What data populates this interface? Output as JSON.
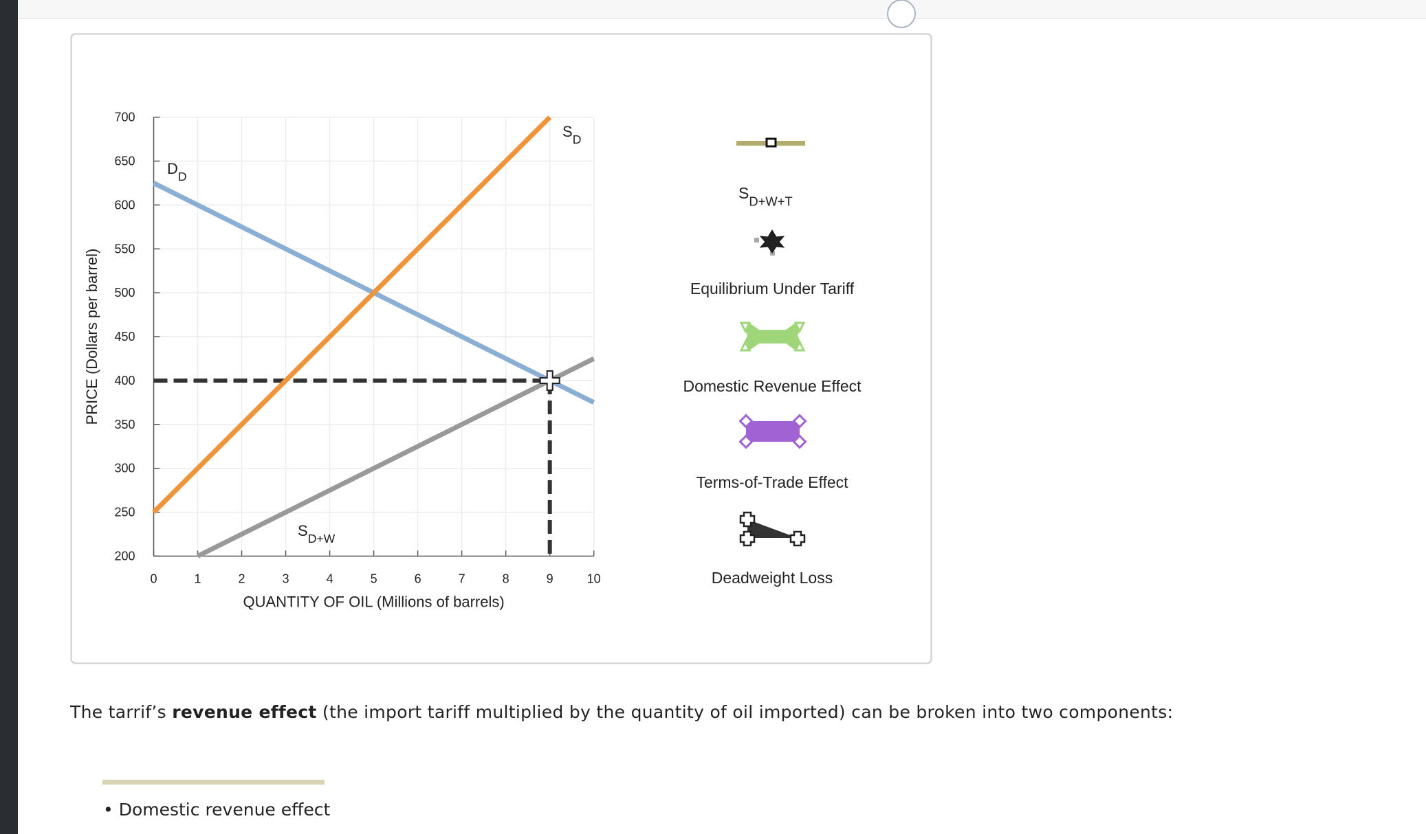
{
  "chart_data": {
    "type": "line",
    "x_label": "QUANTITY OF OIL (Millions of barrels)",
    "y_label": "PRICE (Dollars per barrel)",
    "xlim": [
      0,
      10
    ],
    "ylim": [
      200,
      700
    ],
    "xticks": [
      0,
      1,
      2,
      3,
      4,
      5,
      6,
      7,
      8,
      9,
      10
    ],
    "yticks": [
      200,
      250,
      300,
      350,
      400,
      450,
      500,
      550,
      600,
      650,
      700
    ],
    "grid": true,
    "series": [
      {
        "name": "D",
        "name_subscript": "D",
        "color": "#8aaed4",
        "x": [
          0,
          10
        ],
        "values": [
          625,
          375
        ]
      },
      {
        "name": "S",
        "name_subscript": "D",
        "color": "#f0943a",
        "x": [
          0,
          9
        ],
        "values": [
          250,
          700
        ]
      },
      {
        "name": "S",
        "name_subscript": "D+W",
        "color": "#999999",
        "x": [
          1,
          10
        ],
        "values": [
          200,
          425
        ]
      }
    ],
    "guides": [
      {
        "color": "#333333",
        "x": [
          0,
          9
        ],
        "values": [
          400,
          400
        ]
      },
      {
        "color": "#333333",
        "x": [
          9,
          9
        ],
        "values": [
          400,
          200
        ]
      }
    ],
    "point": {
      "x": 9,
      "y": 400
    }
  },
  "tools": [
    {
      "label": "S",
      "label_subscript": "D+W+T",
      "color": "#b0ad6e"
    },
    {
      "label": "Equilibrium Under Tariff",
      "color": "#222222"
    },
    {
      "label": "Domestic Revenue Effect",
      "color": "#9fd67a"
    },
    {
      "label": "Terms-of-Trade Effect",
      "color": "#a163d4"
    },
    {
      "label": "Deadweight Loss",
      "color": "#333333"
    }
  ],
  "text": {
    "before": "The tarrif’s ",
    "bold": "revenue effect",
    "after": " (the import tariff multiplied by the quantity of oil imported) can be broken into two components:"
  },
  "bullets": [
    "Domestic revenue effect"
  ]
}
